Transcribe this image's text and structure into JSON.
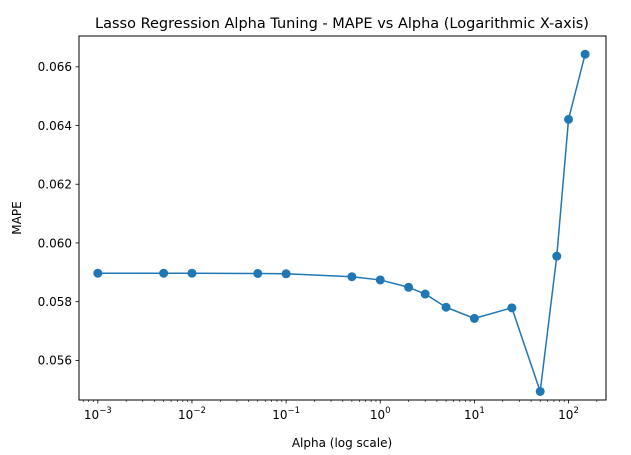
{
  "chart_data": {
    "type": "line",
    "title": "Lasso Regression Alpha Tuning - MAPE vs Alpha (Logarithmic X-axis)",
    "xlabel": "Alpha (log scale)",
    "ylabel": "MAPE",
    "x_scale": "log",
    "xlim": [
      0.000631,
      250
    ],
    "ylim": [
      0.05465,
      0.06705
    ],
    "grid": false,
    "markers": "circle",
    "series_color": "#1f77b4",
    "x_ticks": [
      {
        "value": 0.001,
        "base": "10",
        "exp": "−3"
      },
      {
        "value": 0.01,
        "base": "10",
        "exp": "−2"
      },
      {
        "value": 0.1,
        "base": "10",
        "exp": "−1"
      },
      {
        "value": 1,
        "base": "10",
        "exp": "0"
      },
      {
        "value": 10,
        "base": "10",
        "exp": "1"
      },
      {
        "value": 100,
        "base": "10",
        "exp": "2"
      }
    ],
    "y_ticks": [
      {
        "value": 0.056,
        "label": "0.056"
      },
      {
        "value": 0.058,
        "label": "0.058"
      },
      {
        "value": 0.06,
        "label": "0.060"
      },
      {
        "value": 0.062,
        "label": "0.062"
      },
      {
        "value": 0.064,
        "label": "0.064"
      },
      {
        "value": 0.066,
        "label": "0.066"
      }
    ],
    "x": [
      0.001,
      0.005,
      0.01,
      0.05,
      0.1,
      0.5,
      1,
      2,
      3,
      5,
      10,
      25,
      50,
      75,
      100,
      150
    ],
    "y": [
      0.05897,
      0.05897,
      0.05897,
      0.05896,
      0.05895,
      0.05885,
      0.05874,
      0.05849,
      0.05826,
      0.05781,
      0.05743,
      0.05779,
      0.05494,
      0.05955,
      0.06421,
      0.06643
    ]
  }
}
